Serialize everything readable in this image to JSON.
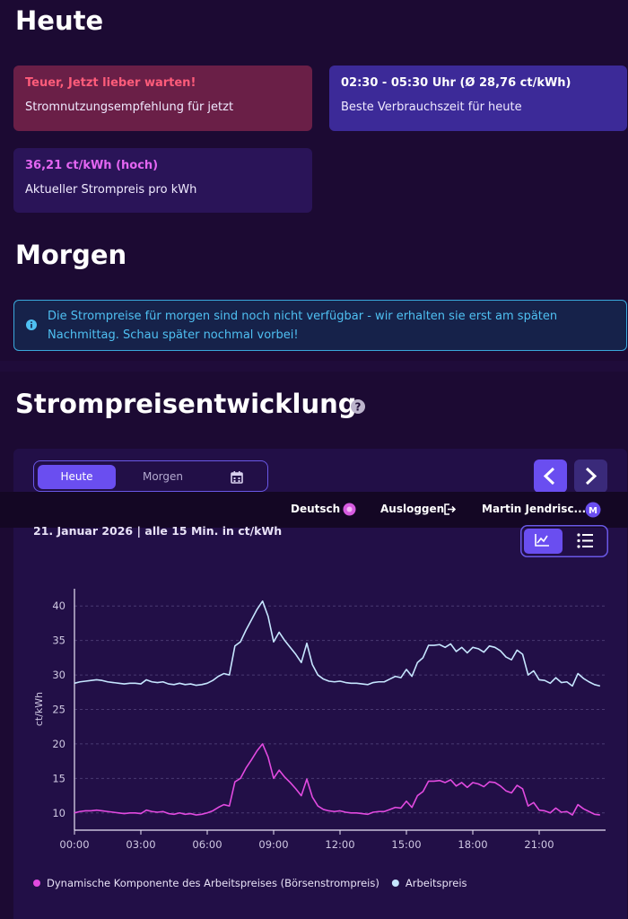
{
  "heute": {
    "title": "Heute",
    "cards": [
      {
        "headline": "Teuer, Jetzt lieber warten!",
        "text": "Stromnutzungsempfehlung für jetzt"
      },
      {
        "headline": "02:30 - 05:30 Uhr (Ø 28,76 ct/kWh)",
        "text": "Beste Verbrauchszeit für heute"
      },
      {
        "headline": "36,21 ct/kWh (hoch)",
        "text": "Aktueller Strompreis pro kWh"
      }
    ]
  },
  "morgen": {
    "title": "Morgen",
    "notice": "Die Strompreise für morgen sind noch nicht verfügbar - wir erhalten sie erst am späten Nachmittag. Schau später nochmal vorbei!"
  },
  "section_title": "Strompreisentwicklung",
  "tabs": [
    "Heute",
    "Morgen"
  ],
  "navbar": {
    "language": "Deutsch",
    "logout": "Ausloggen",
    "user": "Martin Jendrisc...",
    "avatar": "M"
  },
  "chart_data": {
    "type": "line",
    "subtitle": "21. Januar 2026 | alle 15 Min. in ct/kWh",
    "y_label": "ct/kWh",
    "x": [
      0,
      0.25,
      0.5,
      0.75,
      1,
      1.25,
      1.5,
      1.75,
      2,
      2.25,
      2.5,
      2.75,
      3,
      3.25,
      3.5,
      3.75,
      4,
      4.25,
      4.5,
      4.75,
      5,
      5.25,
      5.5,
      5.75,
      6,
      6.25,
      6.5,
      6.75,
      7,
      7.25,
      7.5,
      7.75,
      8,
      8.25,
      8.5,
      8.75,
      9,
      9.25,
      9.5,
      9.75,
      10,
      10.25,
      10.5,
      10.75,
      11,
      11.25,
      11.5,
      11.75,
      12,
      12.25,
      12.5,
      12.75,
      13,
      13.25,
      13.5,
      13.75,
      14,
      14.25,
      14.5,
      14.75,
      15,
      15.25,
      15.5,
      15.75,
      16,
      16.25,
      16.5,
      16.75,
      17,
      17.25,
      17.5,
      17.75,
      18,
      18.25,
      18.5,
      18.75,
      19,
      19.25,
      19.5,
      19.75,
      20,
      20.25,
      20.5,
      20.75,
      21,
      21.25,
      21.5,
      21.75,
      22,
      22.25,
      22.5,
      22.75,
      23,
      23.25,
      23.5,
      23.75
    ],
    "series": [
      {
        "name": "Dynamische Komponente des Arbeitspreises (Börsenstrompreis)",
        "color": "#e24ae0",
        "values": [
          10.0,
          10.2,
          10.3,
          10.3,
          10.4,
          10.3,
          10.2,
          10.1,
          10.0,
          9.9,
          10.0,
          10.0,
          9.9,
          10.4,
          10.2,
          10.1,
          10.2,
          9.9,
          9.8,
          10.0,
          9.8,
          9.9,
          9.7,
          9.8,
          10.0,
          10.3,
          10.8,
          11.2,
          11.0,
          14.5,
          15.0,
          16.5,
          17.7,
          19.0,
          20.0,
          18.1,
          15.0,
          16.2,
          15.2,
          14.4,
          13.5,
          12.5,
          14.9,
          12.3,
          11.0,
          10.5,
          10.3,
          10.2,
          10.3,
          10.1,
          10.0,
          10.0,
          9.9,
          9.8,
          10.1,
          10.2,
          10.2,
          10.5,
          10.8,
          10.7,
          11.7,
          10.8,
          12.5,
          13.1,
          14.6,
          14.6,
          14.7,
          14.4,
          14.8,
          13.9,
          14.4,
          13.7,
          14.4,
          14.2,
          13.8,
          14.5,
          14.4,
          13.9,
          13.2,
          12.9,
          14.0,
          13.5,
          11.0,
          11.5,
          10.4,
          10.3,
          10.0,
          10.7,
          10.1,
          10.2,
          9.7,
          11.2,
          10.6,
          10.2,
          9.8,
          9.7
        ]
      },
      {
        "name": "Arbeitspreis",
        "color": "#c6e6ff",
        "values": [
          28.8,
          29.0,
          29.1,
          29.2,
          29.3,
          29.2,
          29.0,
          28.9,
          28.8,
          28.7,
          28.8,
          28.8,
          28.7,
          29.3,
          29.0,
          28.9,
          29.0,
          28.7,
          28.6,
          28.8,
          28.6,
          28.7,
          28.5,
          28.6,
          28.8,
          29.2,
          29.8,
          30.2,
          30.0,
          34.2,
          34.8,
          36.5,
          38.0,
          39.5,
          40.7,
          38.5,
          34.8,
          36.2,
          35.0,
          34.0,
          33.0,
          31.8,
          34.6,
          31.5,
          30.0,
          29.4,
          29.1,
          29.0,
          29.1,
          28.9,
          28.8,
          28.8,
          28.7,
          28.6,
          28.9,
          29.0,
          29.0,
          29.4,
          29.8,
          29.6,
          30.8,
          29.8,
          31.8,
          32.5,
          34.3,
          34.3,
          34.4,
          34.0,
          34.5,
          33.4,
          34.0,
          33.2,
          34.0,
          33.8,
          33.3,
          34.2,
          34.0,
          33.5,
          32.6,
          32.2,
          33.6,
          33.0,
          30.0,
          30.6,
          29.3,
          29.2,
          28.8,
          29.6,
          28.9,
          29.0,
          28.4,
          30.2,
          29.5,
          29.0,
          28.6,
          28.4
        ]
      }
    ],
    "xlim": [
      0,
      24
    ],
    "xticks": [
      {
        "value": 0,
        "label": "00:00"
      },
      {
        "value": 3,
        "label": "03:00"
      },
      {
        "value": 6,
        "label": "06:00"
      },
      {
        "value": 9,
        "label": "09:00"
      },
      {
        "value": 12,
        "label": "12:00"
      },
      {
        "value": 15,
        "label": "15:00"
      },
      {
        "value": 18,
        "label": "18:00"
      },
      {
        "value": 21,
        "label": "21:00"
      }
    ],
    "ylim": [
      7.5,
      42.5
    ],
    "yticks": [
      10,
      15,
      20,
      25,
      30,
      35,
      40
    ],
    "grid": true
  }
}
